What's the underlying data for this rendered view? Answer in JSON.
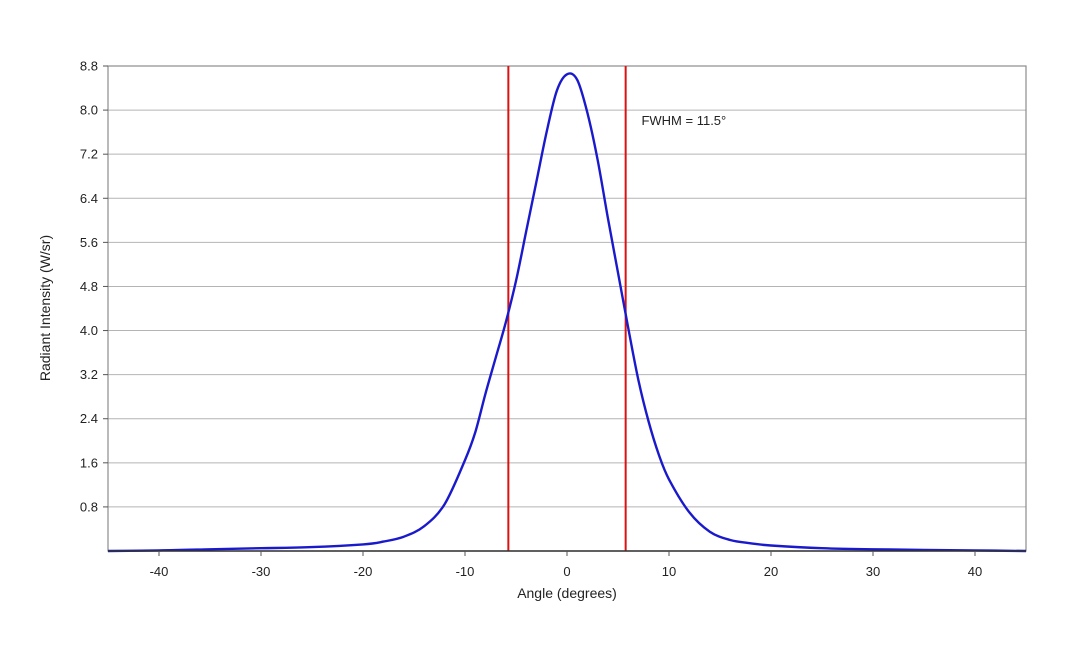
{
  "chart_data": {
    "type": "line",
    "title": "",
    "xlabel": "Angle (degrees)",
    "ylabel": "Radiant Intensity (W/sr)",
    "xlim": [
      -45,
      45
    ],
    "ylim": [
      0,
      8.8
    ],
    "xticks": [
      -40,
      -30,
      -20,
      -10,
      0,
      10,
      20,
      30,
      40
    ],
    "xtick_labels": [
      "-40",
      "-30",
      "-20",
      "-10",
      "0",
      "10",
      "20",
      "30",
      "40"
    ],
    "yticks": [
      0.8,
      1.6,
      2.4,
      3.2,
      4.0,
      4.8,
      5.6,
      6.4,
      7.2,
      8.0,
      8.8
    ],
    "ytick_labels": [
      "0.8",
      "1.6",
      "2.4",
      "3.2",
      "4.0",
      "4.8",
      "5.6",
      "6.4",
      "7.2",
      "8.0",
      "8.8"
    ],
    "grid": "horizontal",
    "series": [
      {
        "color": "#1a1acc",
        "x": [
          -45,
          -40,
          -35,
          -30,
          -25,
          -20,
          -18,
          -16,
          -14,
          -12,
          -10,
          -9,
          -8,
          -7,
          -6,
          -5,
          -4,
          -3,
          -2,
          -1,
          0,
          1,
          2,
          3,
          4,
          5,
          6,
          7,
          8,
          9,
          10,
          12,
          14,
          16,
          18,
          20,
          25,
          30,
          35,
          40,
          45
        ],
        "y": [
          0.0,
          0.01,
          0.03,
          0.05,
          0.07,
          0.12,
          0.17,
          0.26,
          0.45,
          0.85,
          1.65,
          2.15,
          2.85,
          3.5,
          4.15,
          4.9,
          5.8,
          6.7,
          7.6,
          8.35,
          8.65,
          8.55,
          7.95,
          7.1,
          6.05,
          5.05,
          4.05,
          3.1,
          2.35,
          1.75,
          1.3,
          0.7,
          0.35,
          0.2,
          0.14,
          0.1,
          0.05,
          0.03,
          0.02,
          0.01,
          0.0
        ]
      }
    ],
    "vlines": [
      {
        "x": -5.75,
        "color": "#dd1111"
      },
      {
        "x": 5.75,
        "color": "#dd1111"
      }
    ],
    "annotation": {
      "text": "FWHM = 11.5°",
      "x": 7.3,
      "y": 7.8
    }
  }
}
